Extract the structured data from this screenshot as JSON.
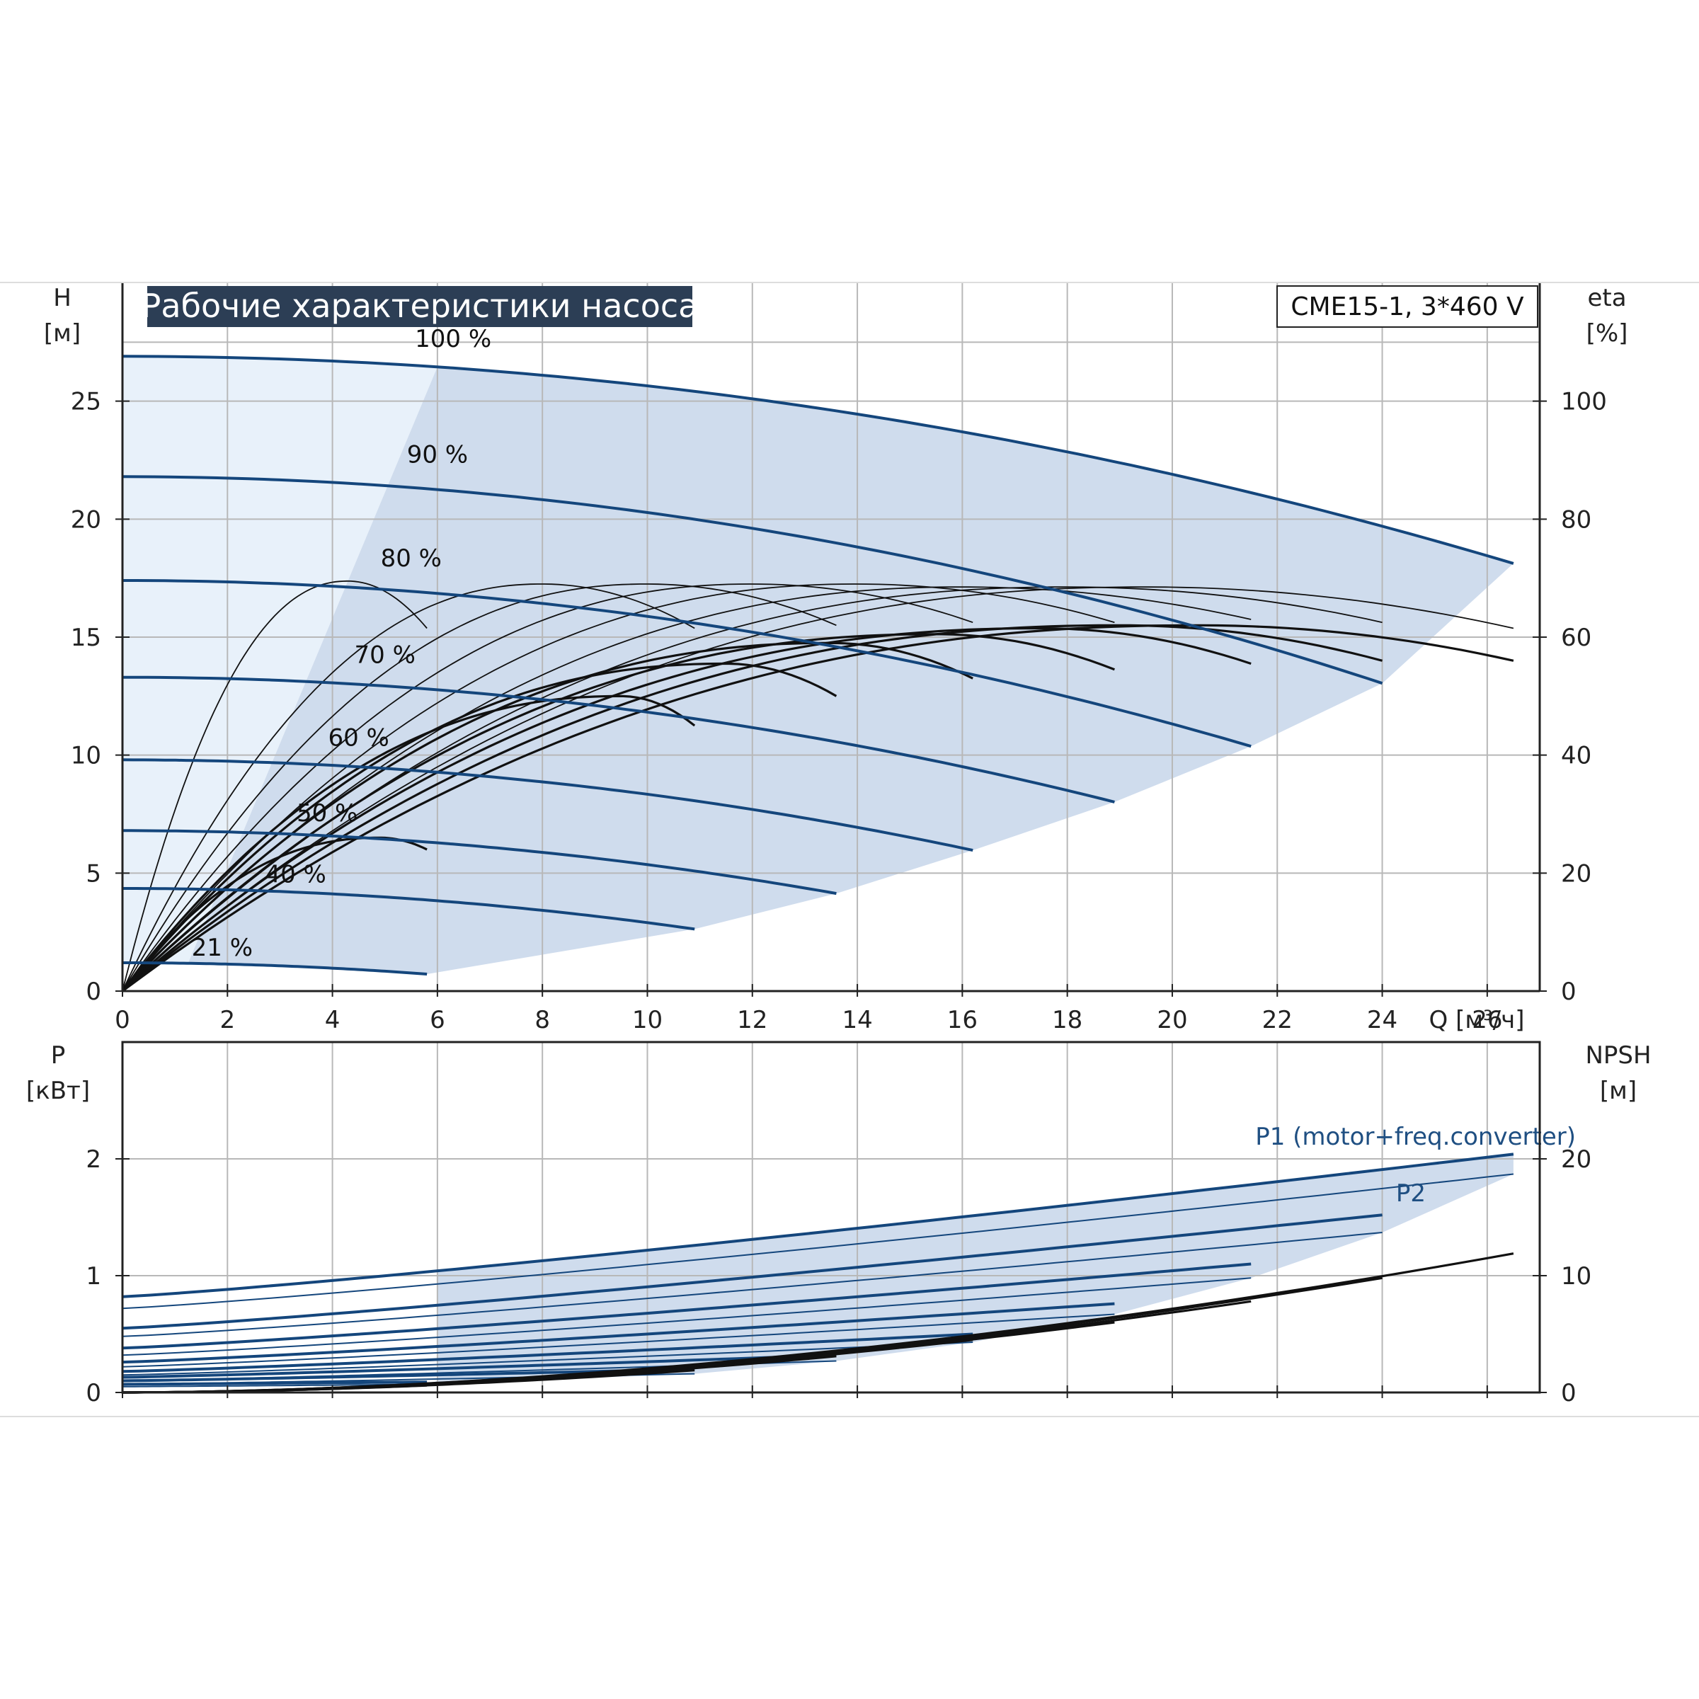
{
  "title": "Рабочие характеристики насоса",
  "model": "CME15-1, 3*460 V",
  "colors": {
    "curve_blue": "#14467c",
    "area_fill": "#cfdced",
    "area_fill_light": "#e8f1fa",
    "grid": "#b8b8b8",
    "title_bg": "#2c3e55",
    "axis": "#222222"
  },
  "chart_data": [
    {
      "type": "line",
      "panel": "top",
      "xlabel": "Q [м³/ч]",
      "ylabel_left": "H\n[м]",
      "ylabel_left_lines": [
        "H",
        "[м]"
      ],
      "ylabel_right_lines": [
        "eta",
        "[%]"
      ],
      "xlim": [
        0,
        27
      ],
      "ylim_left": [
        0,
        30
      ],
      "ylim_right": [
        0,
        120
      ],
      "x_ticks": [
        "0",
        "2",
        "4",
        "6",
        "8",
        "10",
        "12",
        "14",
        "16",
        "18",
        "20",
        "22",
        "24",
        "26"
      ],
      "y_ticks_left": [
        "0",
        "5",
        "10",
        "15",
        "20",
        "25"
      ],
      "y_ticks_right": [
        "0",
        "20",
        "40",
        "60",
        "80",
        "100"
      ],
      "grid": true,
      "head_curves": [
        {
          "label": "100 %",
          "label_x": 6.3,
          "label_y": 27.3,
          "qmax": 26.5,
          "h0": 26.9,
          "k": 0.0125
        },
        {
          "label": "90 %",
          "label_x": 6.0,
          "label_y": 22.4,
          "qmax": 24.0,
          "h0": 21.8,
          "k": 0.0152
        },
        {
          "label": "80 %",
          "label_x": 5.5,
          "label_y": 18.0,
          "qmax": 21.5,
          "h0": 17.4,
          "k": 0.0152
        },
        {
          "label": "70 %",
          "label_x": 5.0,
          "label_y": 13.9,
          "qmax": 18.9,
          "h0": 13.3,
          "k": 0.0148
        },
        {
          "label": "60 %",
          "label_x": 4.5,
          "label_y": 10.4,
          "qmax": 16.2,
          "h0": 9.8,
          "k": 0.0146
        },
        {
          "label": "50 %",
          "label_x": 3.9,
          "label_y": 7.2,
          "qmax": 13.6,
          "h0": 6.8,
          "k": 0.0144
        },
        {
          "label": "40 %",
          "label_x": 3.3,
          "label_y": 4.6,
          "qmax": 10.9,
          "h0": 4.35,
          "k": 0.0145
        },
        {
          "label": "21 %",
          "label_x": 1.9,
          "label_y": 1.5,
          "qmax": 5.8,
          "h0": 1.2,
          "k": 0.0143
        }
      ],
      "efficiency_curves": [
        {
          "qmax": 5.8,
          "peak_q": 4.3,
          "peak_eta": 69.5,
          "end_eta": 61.5
        },
        {
          "qmax": 10.9,
          "peak_q": 8.0,
          "peak_eta": 69.0,
          "end_eta": 61.5
        },
        {
          "qmax": 13.6,
          "peak_q": 10.0,
          "peak_eta": 69.0,
          "end_eta": 62.0
        },
        {
          "qmax": 16.2,
          "peak_q": 12.0,
          "peak_eta": 69.0,
          "end_eta": 62.5
        },
        {
          "qmax": 18.9,
          "peak_q": 14.0,
          "peak_eta": 69.0,
          "end_eta": 62.5
        },
        {
          "qmax": 21.5,
          "peak_q": 16.0,
          "peak_eta": 68.5,
          "end_eta": 63.0
        },
        {
          "qmax": 24.0,
          "peak_q": 18.0,
          "peak_eta": 68.5,
          "end_eta": 62.5
        },
        {
          "qmax": 26.5,
          "peak_q": 19.5,
          "peak_eta": 68.5,
          "end_eta": 61.5
        },
        {
          "qmax": 5.8,
          "peak_q": 4.9,
          "peak_eta": 26.0,
          "end_eta": 24.0
        },
        {
          "qmax": 10.9,
          "peak_q": 9.5,
          "peak_eta": 50.0,
          "end_eta": 45.0
        },
        {
          "qmax": 13.6,
          "peak_q": 11.5,
          "peak_eta": 55.5,
          "end_eta": 50.0
        },
        {
          "qmax": 16.2,
          "peak_q": 13.5,
          "peak_eta": 59.0,
          "end_eta": 53.0
        },
        {
          "qmax": 18.9,
          "peak_q": 15.5,
          "peak_eta": 60.5,
          "end_eta": 54.5
        },
        {
          "qmax": 21.5,
          "peak_q": 17.5,
          "peak_eta": 61.5,
          "end_eta": 55.5
        },
        {
          "qmax": 24.0,
          "peak_q": 19.0,
          "peak_eta": 62.0,
          "end_eta": 56.0
        },
        {
          "qmax": 26.5,
          "peak_q": 20.5,
          "peak_eta": 62.0,
          "end_eta": 56.0
        }
      ]
    },
    {
      "type": "line",
      "panel": "bottom",
      "ylabel_left_lines": [
        "P",
        "[кВт]"
      ],
      "ylabel_right_lines": [
        "NPSH",
        "[м]"
      ],
      "xlim": [
        0,
        27
      ],
      "ylim_left": [
        0,
        3
      ],
      "ylim_right": [
        0,
        30
      ],
      "y_ticks_left": [
        "0",
        "1",
        "2"
      ],
      "y_ticks_right": [
        "0",
        "10",
        "20"
      ],
      "grid": true,
      "series_labels": {
        "p1": "P1 (motor+freq.converter)",
        "p2": "P2"
      },
      "p1_curves": [
        {
          "qmax": 26.5,
          "p0": 0.82,
          "pend": 2.04
        },
        {
          "qmax": 24.0,
          "p0": 0.55,
          "pend": 1.52
        },
        {
          "qmax": 21.5,
          "p0": 0.38,
          "pend": 1.1
        },
        {
          "qmax": 18.9,
          "p0": 0.26,
          "pend": 0.76
        },
        {
          "qmax": 16.2,
          "p0": 0.18,
          "pend": 0.5
        },
        {
          "qmax": 13.6,
          "p0": 0.13,
          "pend": 0.32
        },
        {
          "qmax": 10.9,
          "p0": 0.1,
          "pend": 0.2
        },
        {
          "qmax": 5.8,
          "p0": 0.07,
          "pend": 0.09
        }
      ],
      "p2_curves": [
        {
          "qmax": 26.5,
          "p0": 0.72,
          "pend": 1.87
        },
        {
          "qmax": 24.0,
          "p0": 0.48,
          "pend": 1.37
        },
        {
          "qmax": 21.5,
          "p0": 0.32,
          "pend": 0.98
        },
        {
          "qmax": 18.9,
          "p0": 0.22,
          "pend": 0.67
        },
        {
          "qmax": 16.2,
          "p0": 0.15,
          "pend": 0.43
        },
        {
          "qmax": 13.6,
          "p0": 0.1,
          "pend": 0.27
        },
        {
          "qmax": 10.9,
          "p0": 0.07,
          "pend": 0.16
        },
        {
          "qmax": 5.8,
          "p0": 0.05,
          "pend": 0.07
        }
      ],
      "npsh_curves": [
        {
          "qmax": 26.5,
          "npsh_end": 11.9
        },
        {
          "qmax": 24.0,
          "npsh_end": 9.8
        },
        {
          "qmax": 21.5,
          "npsh_end": 7.8
        },
        {
          "qmax": 18.9,
          "npsh_end": 6.0
        },
        {
          "qmax": 16.2,
          "npsh_end": 4.5
        },
        {
          "qmax": 13.6,
          "npsh_end": 3.1
        },
        {
          "qmax": 10.9,
          "npsh_end": 1.9
        },
        {
          "qmax": 5.8,
          "npsh_end": 0.6
        }
      ]
    }
  ]
}
